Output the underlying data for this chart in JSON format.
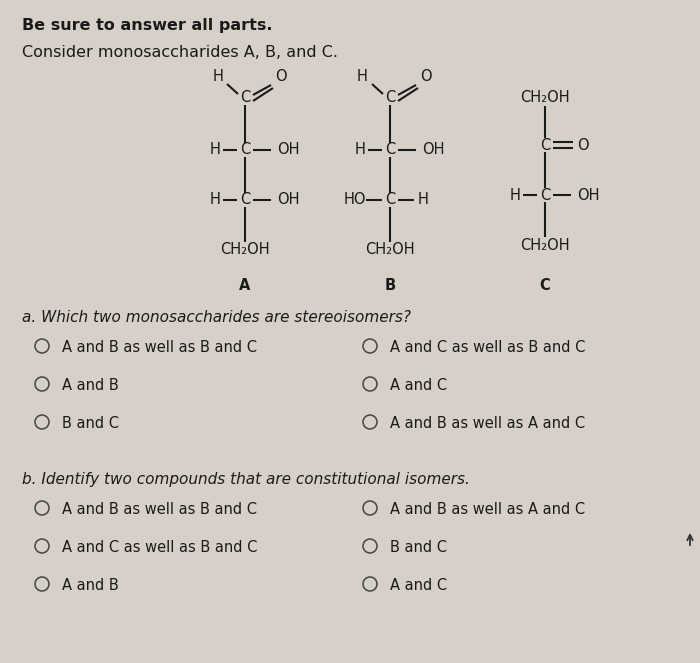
{
  "background_color": "#d6d0c8",
  "title_bold": "Be sure to answer all parts.",
  "subtitle": "Consider monosaccharides A, B, and C.",
  "question_a": "a. Which two monosaccharides are stereoisomers?",
  "question_b": "b. Identify two compounds that are constitutional isomers.",
  "options_a": [
    [
      "A and B as well as B and C",
      "A and C as well as B and C"
    ],
    [
      "A and B",
      "A and C"
    ],
    [
      "B and C",
      "A and B as well as A and C"
    ]
  ],
  "options_b": [
    [
      "A and B as well as B and C",
      "A and B as well as A and C"
    ],
    [
      "A and C as well as B and C",
      "B and C"
    ],
    [
      "A and B",
      "A and C"
    ]
  ],
  "text_color": "#1a1a1a",
  "fig_width": 7.0,
  "fig_height": 6.63,
  "dpi": 100
}
